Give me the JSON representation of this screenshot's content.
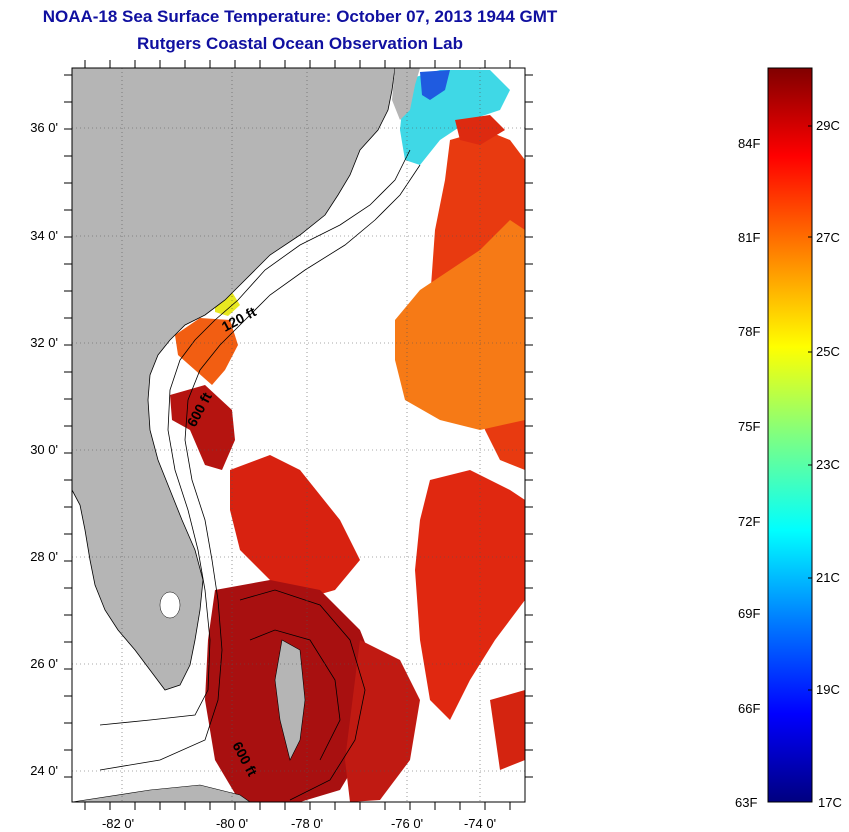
{
  "header": {
    "title": "NOAA-18 Sea Surface Temperature:  October 07, 2013 1944 GMT",
    "subtitle": "Rutgers Coastal Ocean Observation Lab"
  },
  "map": {
    "lat_labels": [
      "36 0'",
      "34 0'",
      "32 0'",
      "30 0'",
      "28 0'",
      "26 0'",
      "24 0'"
    ],
    "lon_labels": [
      "-82 0'",
      "-80 0'",
      "-78 0'",
      "-76 0'",
      "-74 0'"
    ],
    "contour_labels": [
      "120 ft",
      "600 ft",
      "600 ft"
    ],
    "colors": {
      "land": "#b5b5b5",
      "ocean_no_data": "#ffffff",
      "contour": "#000000"
    }
  },
  "colorbar": {
    "fahrenheit_labels": [
      "84F",
      "81F",
      "78F",
      "75F",
      "72F",
      "69F",
      "66F",
      "63F"
    ],
    "celsius_labels": [
      "29C",
      "27C",
      "25C",
      "23C",
      "21C",
      "19C",
      "17C"
    ],
    "range_c": [
      17,
      30
    ],
    "colormap": [
      "#000080",
      "#0000ff",
      "#0080ff",
      "#00ffff",
      "#80ff80",
      "#ffff00",
      "#ff8000",
      "#ff0000",
      "#800000"
    ]
  }
}
